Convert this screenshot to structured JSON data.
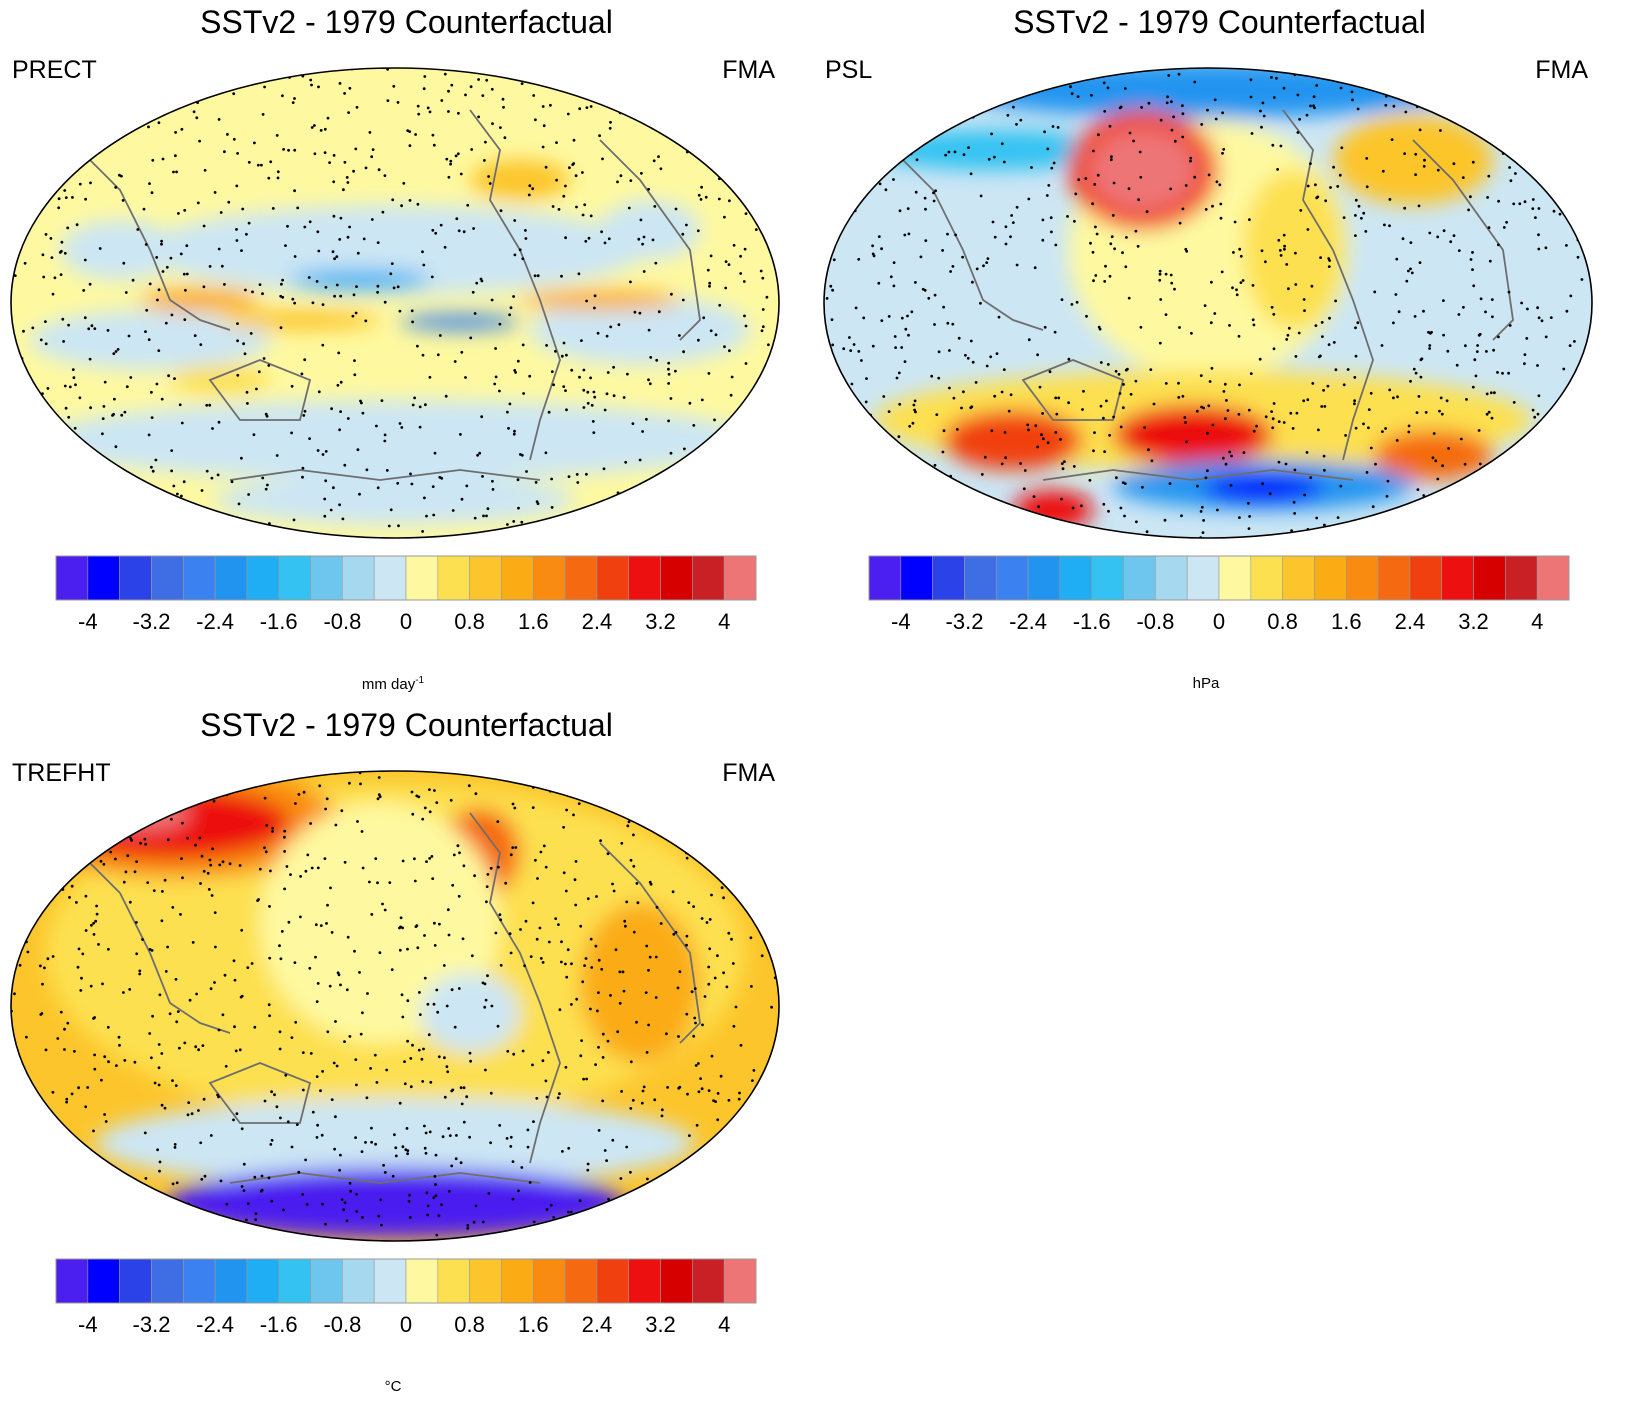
{
  "panels": [
    {
      "id": "prect",
      "title": "SSTv2 - 1979 Counterfactual",
      "variable": "PRECT",
      "season": "FMA",
      "units": "mm day",
      "units_sup": "-1"
    },
    {
      "id": "psl",
      "title": "SSTv2 - 1979 Counterfactual",
      "variable": "PSL",
      "season": "FMA",
      "units": "hPa",
      "units_sup": ""
    },
    {
      "id": "trefht",
      "title": "SSTv2 - 1979 Counterfactual",
      "variable": "TREFHT",
      "season": "FMA",
      "units": "°C",
      "units_sup": ""
    }
  ],
  "colorbar": {
    "colors": [
      "#4b1ff0",
      "#0000ff",
      "#2a42e8",
      "#3f6de3",
      "#3b82f0",
      "#2194f0",
      "#1faef4",
      "#33c2f2",
      "#6ec6ef",
      "#a6d8f0",
      "#cce6f4",
      "#fef9a0",
      "#fde04f",
      "#fcc52b",
      "#fbab14",
      "#f98c10",
      "#f56a10",
      "#f14010",
      "#ec1010",
      "#d60000",
      "#c82024",
      "#ee7576"
    ],
    "tick_labels": [
      "-4",
      "-3.2",
      "-2.4",
      "-1.6",
      "-0.8",
      "0",
      "0.8",
      "1.6",
      "2.4",
      "3.2",
      "4"
    ]
  },
  "map_colors": {
    "coastline": "#6e6e6e",
    "stipple": "#000000",
    "border": "#000000"
  }
}
